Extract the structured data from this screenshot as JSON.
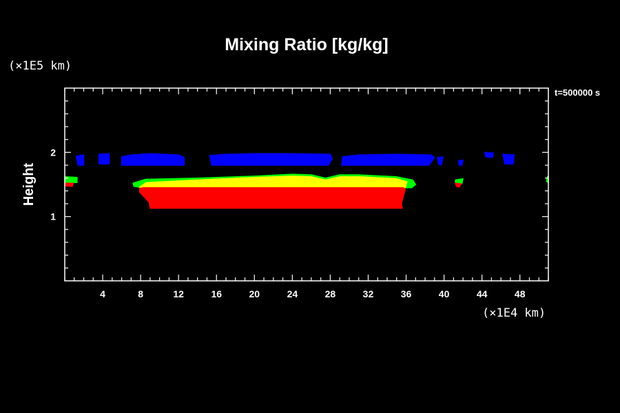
{
  "chart_data": {
    "type": "area",
    "title": "Mixing Ratio [kg/kg]",
    "ylabel": "Height",
    "x_unit": "(×1E4 km)",
    "y_unit": "(×1E5 km)",
    "time_label": "t=500000 s",
    "xlim": [
      0,
      51
    ],
    "ylim": [
      0,
      3
    ],
    "x_ticks": [
      4,
      8,
      12,
      16,
      20,
      24,
      28,
      32,
      36,
      40,
      44,
      48
    ],
    "x_tick_labels": [
      "4",
      "8",
      "12",
      "16",
      "20",
      "24",
      "28",
      "32",
      "36",
      "40",
      "44",
      "48"
    ],
    "y_ticks": [
      1,
      2
    ],
    "y_tick_labels": [
      "1",
      "2"
    ],
    "grid": false,
    "colors": {
      "background": "#000000",
      "axes": "#ffffff",
      "band_blue": "#0000ff",
      "band_green": "#00ff00",
      "band_yellow": "#ffff00",
      "band_red": "#ff0000"
    },
    "regions": [
      {
        "color": "#00ff00",
        "polygon": [
          [
            7.2,
            1.52
          ],
          [
            8.5,
            1.58
          ],
          [
            14,
            1.6
          ],
          [
            20,
            1.63
          ],
          [
            24,
            1.66
          ],
          [
            26,
            1.65
          ],
          [
            27.5,
            1.6
          ],
          [
            29,
            1.65
          ],
          [
            31,
            1.65
          ],
          [
            35,
            1.62
          ],
          [
            36.7,
            1.57
          ],
          [
            37,
            1.5
          ],
          [
            36.6,
            1.45
          ],
          [
            8.2,
            1.45
          ],
          [
            7.3,
            1.47
          ]
        ]
      },
      {
        "color": "#ffff00",
        "polygon": [
          [
            7.9,
            1.46
          ],
          [
            8.6,
            1.53
          ],
          [
            14,
            1.57
          ],
          [
            20,
            1.61
          ],
          [
            24,
            1.63
          ],
          [
            26,
            1.62
          ],
          [
            27.5,
            1.57
          ],
          [
            29,
            1.62
          ],
          [
            31,
            1.62
          ],
          [
            35,
            1.59
          ],
          [
            36.1,
            1.54
          ],
          [
            35.9,
            1.45
          ],
          [
            8.5,
            1.45
          ]
        ]
      },
      {
        "color": "#ff0000",
        "polygon": [
          [
            7.9,
            1.44
          ],
          [
            8.3,
            1.45
          ],
          [
            35.7,
            1.45
          ],
          [
            35.9,
            1.42
          ],
          [
            35.5,
            1.2
          ],
          [
            35.6,
            1.13
          ],
          [
            9.0,
            1.13
          ],
          [
            8.9,
            1.22
          ],
          [
            8.3,
            1.32
          ],
          [
            7.9,
            1.38
          ]
        ]
      },
      {
        "color": "#00ff00",
        "polygon": [
          [
            0,
            1.62
          ],
          [
            1.3,
            1.61
          ],
          [
            1.3,
            1.53
          ],
          [
            0,
            1.53
          ]
        ]
      },
      {
        "color": "#ff0000",
        "polygon": [
          [
            0,
            1.52
          ],
          [
            0.9,
            1.52
          ],
          [
            0.8,
            1.47
          ],
          [
            0,
            1.48
          ]
        ]
      },
      {
        "color": "#00ff00",
        "polygon": [
          [
            41.2,
            1.57
          ],
          [
            42,
            1.59
          ],
          [
            41.9,
            1.52
          ],
          [
            41.2,
            1.52
          ]
        ]
      },
      {
        "color": "#ff0000",
        "polygon": [
          [
            41.2,
            1.52
          ],
          [
            41.8,
            1.51
          ],
          [
            41.6,
            1.46
          ],
          [
            41.3,
            1.47
          ]
        ]
      },
      {
        "color": "#00ff00",
        "polygon": [
          [
            50.9,
            1.62
          ],
          [
            51,
            1.62
          ],
          [
            51,
            1.53
          ],
          [
            50.8,
            1.55
          ]
        ]
      },
      {
        "color": "#0000ff",
        "polygon": [
          [
            1.2,
            1.94
          ],
          [
            2,
            1.96
          ],
          [
            2,
            1.8
          ],
          [
            1.4,
            1.8
          ]
        ]
      },
      {
        "color": "#0000ff",
        "polygon": [
          [
            3.6,
            1.97
          ],
          [
            4.7,
            1.98
          ],
          [
            4.7,
            1.82
          ],
          [
            3.6,
            1.82
          ]
        ]
      },
      {
        "color": "#0000ff",
        "polygon": [
          [
            6,
            1.93
          ],
          [
            7,
            1.96
          ],
          [
            9,
            1.98
          ],
          [
            12,
            1.96
          ],
          [
            12.6,
            1.92
          ],
          [
            12.6,
            1.8
          ],
          [
            6,
            1.8
          ]
        ]
      },
      {
        "color": "#0000ff",
        "polygon": [
          [
            15.3,
            1.95
          ],
          [
            17,
            1.97
          ],
          [
            20,
            1.98
          ],
          [
            24,
            1.98
          ],
          [
            28,
            1.97
          ],
          [
            28.2,
            1.9
          ],
          [
            27.8,
            1.8
          ],
          [
            15.5,
            1.8
          ]
        ]
      },
      {
        "color": "#0000ff",
        "polygon": [
          [
            29.3,
            1.93
          ],
          [
            31,
            1.96
          ],
          [
            35,
            1.97
          ],
          [
            38.6,
            1.96
          ],
          [
            39,
            1.92
          ],
          [
            38.4,
            1.8
          ],
          [
            29.2,
            1.8
          ]
        ]
      },
      {
        "color": "#0000ff",
        "polygon": [
          [
            39.3,
            1.92
          ],
          [
            39.9,
            1.93
          ],
          [
            39.7,
            1.8
          ],
          [
            39.4,
            1.82
          ]
        ]
      },
      {
        "color": "#0000ff",
        "polygon": [
          [
            41.5,
            1.87
          ],
          [
            42,
            1.88
          ],
          [
            41.9,
            1.8
          ],
          [
            41.6,
            1.8
          ]
        ]
      },
      {
        "color": "#0000ff",
        "polygon": [
          [
            44.3,
            2.0
          ],
          [
            45.2,
            1.99
          ],
          [
            45.1,
            1.92
          ],
          [
            44.4,
            1.93
          ]
        ]
      },
      {
        "color": "#0000ff",
        "polygon": [
          [
            46.2,
            1.97
          ],
          [
            47.4,
            1.96
          ],
          [
            47.3,
            1.82
          ],
          [
            46.4,
            1.82
          ]
        ]
      }
    ]
  }
}
